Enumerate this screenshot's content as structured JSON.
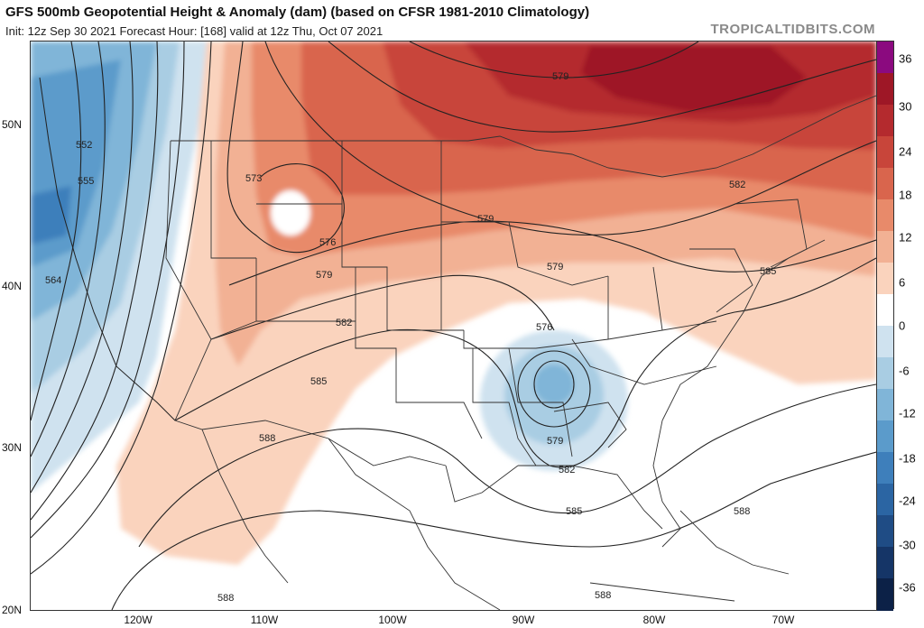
{
  "header": {
    "title": "GFS 500mb Geopotential Height & Anomaly (dam) (based on CFSR 1981-2010 Climatology)",
    "subtitle": "Init: 12z Sep 30 2021   Forecast Hour: [168]   valid at 12z Thu, Oct 07 2021",
    "brand": "TROPICALTIDBITS.COM"
  },
  "map": {
    "lat_labels": [
      "50N",
      "40N",
      "30N",
      "20N"
    ],
    "lon_labels": [
      "120W",
      "110W",
      "100W",
      "90W",
      "80W",
      "70W"
    ],
    "contour_labels": [
      {
        "text": "552"
      },
      {
        "text": "555"
      },
      {
        "text": "564"
      },
      {
        "text": "573"
      },
      {
        "text": "576"
      },
      {
        "text": "579"
      },
      {
        "text": "579"
      },
      {
        "text": "579"
      },
      {
        "text": "579"
      },
      {
        "text": "582"
      },
      {
        "text": "582"
      },
      {
        "text": "582"
      },
      {
        "text": "585"
      },
      {
        "text": "585"
      },
      {
        "text": "585"
      },
      {
        "text": "588"
      },
      {
        "text": "588"
      },
      {
        "text": "588"
      },
      {
        "text": "588"
      },
      {
        "text": "576"
      },
      {
        "text": "579"
      }
    ]
  },
  "colorbar": {
    "ticks": [
      "36",
      "30",
      "24",
      "18",
      "12",
      "6",
      "0",
      "-6",
      "-12",
      "-18",
      "-24",
      "-30",
      "-36"
    ],
    "colors": [
      "#8b0a7f",
      "#9e1726",
      "#b42a2e",
      "#c8453a",
      "#d9654d",
      "#e88a6a",
      "#f2b194",
      "#fad3bd",
      "#ffffff",
      "#cfe2ef",
      "#a9cde3",
      "#80b5d8",
      "#5b9bcb",
      "#3e7fbb",
      "#2b65a3",
      "#1f4c85",
      "#153567",
      "#0c2147"
    ]
  }
}
